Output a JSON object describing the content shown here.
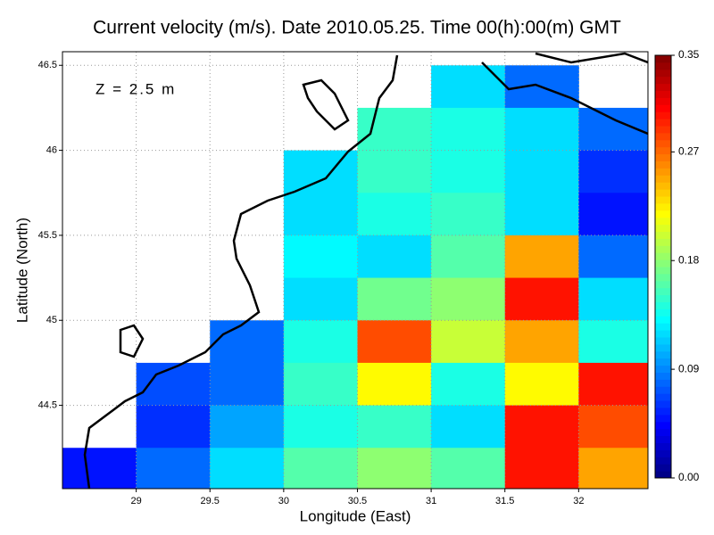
{
  "chart_data": {
    "type": "quiver-map",
    "title": "Current velocity (m/s). Date 2010.05.25. Time 00(h):00(m) GMT",
    "annotation": "Z = 2.5 m",
    "xlabel": "Longitude (East)",
    "ylabel": "Latitude (North)",
    "xlim": [
      28.5,
      32.47
    ],
    "ylim": [
      44.01,
      46.58
    ],
    "xticks": [
      29,
      29.5,
      30,
      30.5,
      31,
      31.5,
      32
    ],
    "yticks": [
      44.5,
      45,
      45.5,
      46,
      46.5
    ],
    "grid": true,
    "colormap": "jet",
    "x": [
      28.75,
      29.25,
      29.75,
      30.25,
      30.75,
      31.25,
      31.75,
      32.25
    ],
    "y": [
      46.375,
      46.125,
      45.875,
      45.625,
      45.375,
      45.125,
      44.875,
      44.625,
      44.375,
      44.125
    ],
    "values": [
      [
        null,
        null,
        null,
        null,
        null,
        0.12,
        0.08,
        null
      ],
      [
        null,
        null,
        null,
        null,
        0.15,
        0.14,
        0.12,
        0.08
      ],
      [
        null,
        null,
        null,
        0.12,
        0.15,
        0.14,
        0.12,
        0.06
      ],
      [
        null,
        null,
        null,
        0.12,
        0.14,
        0.15,
        0.12,
        0.05
      ],
      [
        null,
        null,
        null,
        0.13,
        0.12,
        0.16,
        0.25,
        0.08
      ],
      [
        null,
        null,
        null,
        0.12,
        0.17,
        0.18,
        0.3,
        0.12
      ],
      [
        null,
        null,
        0.08,
        0.14,
        0.28,
        0.2,
        0.25,
        0.14
      ],
      [
        null,
        0.07,
        0.08,
        0.15,
        0.22,
        0.14,
        0.22,
        0.3
      ],
      [
        null,
        0.06,
        0.1,
        0.14,
        0.15,
        0.12,
        0.3,
        0.28
      ],
      [
        0.05,
        0.08,
        0.12,
        0.16,
        0.18,
        0.16,
        0.3,
        0.25
      ]
    ],
    "clim": [
      0,
      0.35
    ],
    "cticks": [
      {
        "value": 0,
        "label": "0.00"
      },
      0.09,
      0.18,
      0.27,
      0.35
    ]
  }
}
